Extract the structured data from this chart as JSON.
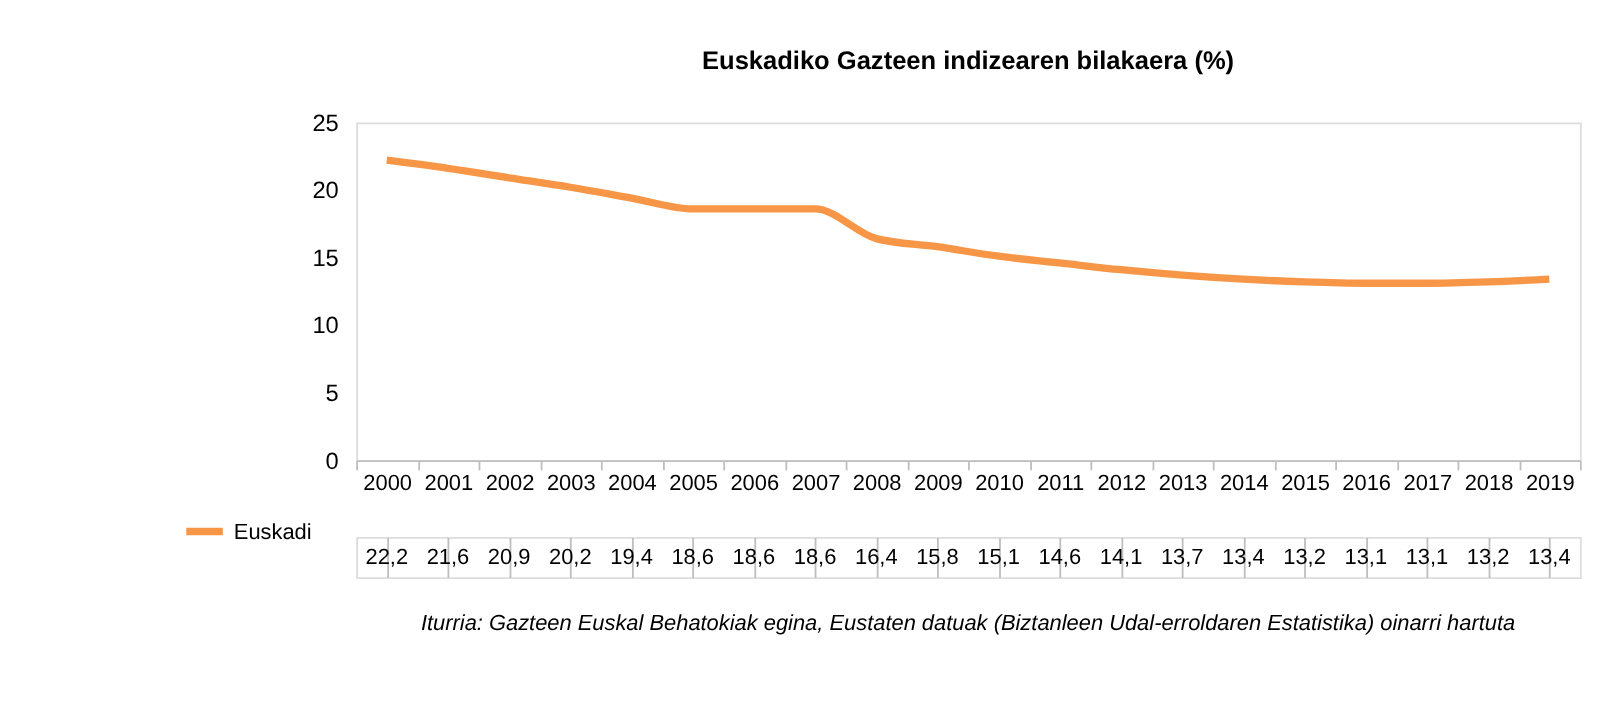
{
  "chart_data": {
    "type": "line",
    "title": "Euskadiko Gazteen indizearen bilakaera (%)",
    "categories": [
      "2000",
      "2001",
      "2002",
      "2003",
      "2004",
      "2005",
      "2006",
      "2007",
      "2008",
      "2009",
      "2010",
      "2011",
      "2012",
      "2013",
      "2014",
      "2015",
      "2016",
      "2017",
      "2018",
      "2019"
    ],
    "series": [
      {
        "name": "Euskadi",
        "color": "#f79646",
        "values": [
          22.2,
          21.6,
          20.9,
          20.2,
          19.4,
          18.6,
          18.6,
          18.6,
          16.4,
          15.8,
          15.1,
          14.6,
          14.1,
          13.7,
          13.4,
          13.2,
          13.1,
          13.1,
          13.2,
          13.4
        ],
        "value_labels": [
          "22,2",
          "21,6",
          "20,9",
          "20,2",
          "19,4",
          "18,6",
          "18,6",
          "18,6",
          "16,4",
          "15,8",
          "15,1",
          "14,6",
          "14,1",
          "13,7",
          "13,4",
          "13,2",
          "13,1",
          "13,1",
          "13,2",
          "13,4"
        ]
      }
    ],
    "ylim": [
      0,
      25
    ],
    "yticks": [
      0,
      5,
      10,
      15,
      20,
      25
    ],
    "grid": false,
    "legend": "bottom left",
    "annotations": [
      "Iturria: Gazteen Euskal Behatokiak egina, Eustaten datuak (Biztanleen Udal-erroldaren Estatistika) oinarri hartuta"
    ]
  }
}
